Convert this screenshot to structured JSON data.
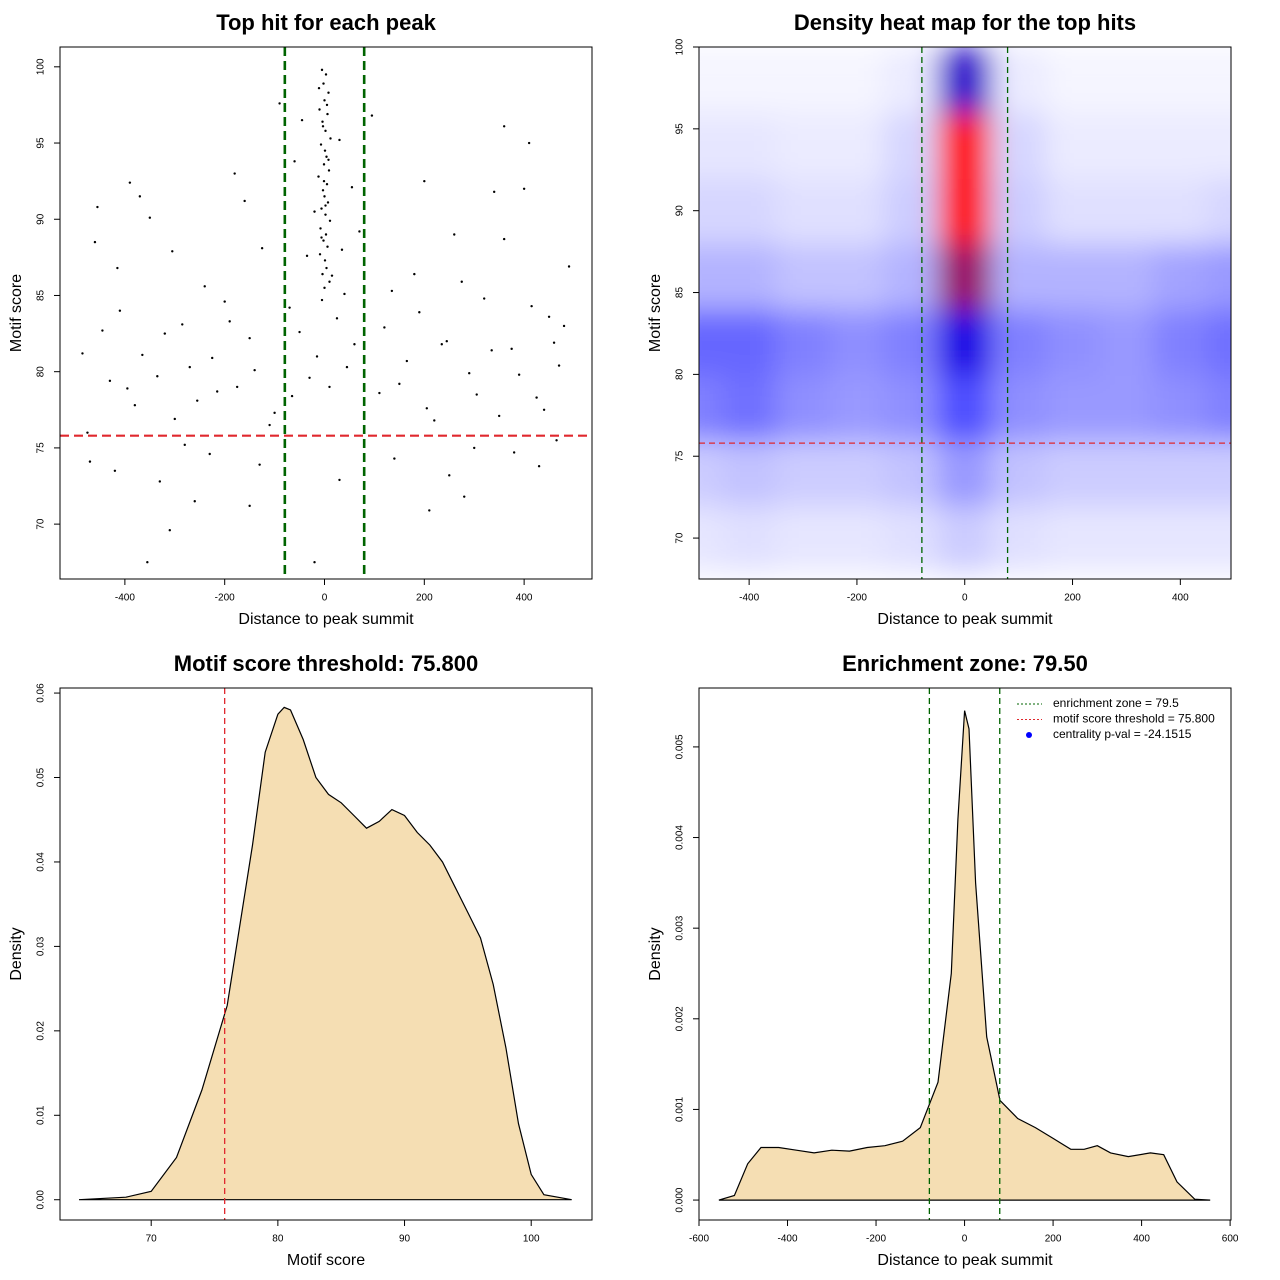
{
  "chart_data": [
    {
      "type": "scatter",
      "title": "Top hit for each peak",
      "x_label": "Distance to peak summit",
      "y_label": "Motif score",
      "xlim": [
        -530,
        536
      ],
      "ylim": [
        66.4,
        101.3
      ],
      "xticks": [
        -400,
        -200,
        0,
        200,
        400
      ],
      "yticks": [
        70,
        75,
        80,
        85,
        90,
        95,
        100
      ],
      "color": "#000000",
      "x": [
        -5,
        3,
        -2,
        8,
        0,
        -10,
        6,
        -4,
        2,
        12,
        -7,
        1,
        4,
        -1,
        9,
        -12,
        5,
        -3,
        0,
        7,
        -6,
        2,
        11,
        -8,
        3,
        -2,
        6,
        -9,
        1,
        4,
        -4,
        10,
        0,
        -11,
        5,
        -3,
        8,
        -1,
        2,
        -6,
        -45,
        30,
        -60,
        55,
        -20,
        70,
        -35,
        15,
        40,
        -70,
        25,
        -50,
        60,
        -15,
        45,
        -30,
        10,
        -65,
        35,
        -5,
        -485,
        -460,
        -430,
        -410,
        -380,
        -350,
        -320,
        -300,
        -270,
        -240,
        -215,
        -190,
        -160,
        -140,
        -110,
        120,
        150,
        180,
        205,
        235,
        260,
        290,
        320,
        350,
        375,
        400,
        425,
        450,
        470,
        490,
        -475,
        -445,
        -415,
        -395,
        -365,
        -335,
        -305,
        -285,
        -255,
        -225,
        -200,
        -175,
        -150,
        -125,
        -100,
        110,
        135,
        165,
        190,
        220,
        245,
        275,
        305,
        335,
        360,
        390,
        415,
        440,
        460,
        480,
        -470,
        -420,
        -370,
        -330,
        -280,
        -230,
        -180,
        -130,
        140,
        200,
        250,
        300,
        340,
        380,
        430,
        465,
        -455,
        -390,
        -260,
        -150,
        280,
        410,
        -355,
        -20,
        30,
        210,
        -90,
        95,
        -310,
        360
      ],
      "y": [
        99.8,
        99.5,
        98.9,
        98.3,
        97.8,
        97.2,
        96.9,
        96.4,
        95.8,
        95.3,
        94.9,
        94.5,
        94.1,
        93.6,
        93.2,
        92.8,
        92.3,
        91.9,
        91.5,
        91.1,
        90.7,
        90.3,
        89.9,
        89.4,
        89.0,
        88.6,
        88.2,
        87.7,
        87.3,
        86.8,
        86.4,
        85.9,
        85.5,
        98.6,
        97.5,
        96.1,
        93.9,
        92.5,
        90.9,
        88.8,
        96.5,
        95.2,
        93.8,
        92.1,
        90.5,
        89.2,
        87.6,
        86.3,
        85.1,
        84.2,
        83.5,
        82.6,
        81.8,
        81.0,
        80.3,
        79.6,
        79.0,
        78.4,
        88.0,
        84.7,
        81.2,
        88.5,
        79.4,
        84.0,
        77.8,
        90.1,
        82.5,
        76.9,
        80.3,
        85.6,
        78.7,
        83.3,
        91.2,
        80.1,
        76.5,
        82.9,
        79.2,
        86.4,
        77.6,
        81.8,
        89.0,
        79.9,
        84.8,
        77.1,
        81.5,
        92.0,
        78.3,
        83.6,
        80.4,
        86.9,
        76.0,
        82.7,
        86.8,
        78.9,
        81.1,
        79.7,
        87.9,
        83.1,
        78.1,
        80.9,
        84.6,
        79.0,
        82.2,
        88.1,
        77.3,
        78.6,
        85.3,
        80.7,
        83.9,
        76.8,
        82.0,
        85.9,
        78.5,
        81.4,
        88.7,
        79.8,
        84.3,
        77.5,
        81.9,
        83.0,
        74.1,
        73.5,
        91.5,
        72.8,
        75.2,
        74.6,
        93.0,
        73.9,
        74.3,
        92.5,
        73.2,
        75.0,
        91.8,
        74.7,
        73.8,
        75.5,
        90.8,
        92.4,
        71.5,
        71.2,
        71.8,
        95.0,
        67.5,
        67.5,
        72.9,
        70.9,
        97.6,
        96.8,
        69.6,
        96.1
      ],
      "vlines": [
        {
          "value": -79.5,
          "color": "#006400"
        },
        {
          "value": 79.5,
          "color": "#006400"
        }
      ],
      "hlines": [
        {
          "value": 75.8,
          "color": "#e0282e"
        }
      ]
    },
    {
      "type": "heatmap",
      "title": "Density heat map for the top hits",
      "x_label": "Distance to peak summit",
      "y_label": "Motif score",
      "xlim": [
        -493,
        494
      ],
      "ylim": [
        67.5,
        100
      ],
      "xticks": [
        -400,
        -200,
        0,
        200,
        400
      ],
      "yticks": [
        70,
        75,
        80,
        85,
        90,
        95,
        100
      ],
      "colors": [
        "#ffffff",
        "#0000ff",
        "#ff0000"
      ],
      "x": [
        -500,
        -400,
        -300,
        -200,
        -100,
        0,
        100,
        200,
        300,
        400,
        500
      ],
      "y": [
        70,
        74,
        78,
        82,
        86,
        90,
        94,
        98
      ],
      "z": [
        [
          0.05,
          0.06,
          0.05,
          0.05,
          0.06,
          0.1,
          0.06,
          0.05,
          0.05,
          0.05,
          0.05
        ],
        [
          0.1,
          0.12,
          0.1,
          0.1,
          0.12,
          0.2,
          0.12,
          0.1,
          0.1,
          0.1,
          0.1
        ],
        [
          0.25,
          0.28,
          0.22,
          0.2,
          0.22,
          0.35,
          0.22,
          0.2,
          0.2,
          0.22,
          0.25
        ],
        [
          0.3,
          0.3,
          0.25,
          0.22,
          0.25,
          0.55,
          0.25,
          0.22,
          0.2,
          0.25,
          0.28
        ],
        [
          0.15,
          0.15,
          0.12,
          0.12,
          0.15,
          0.8,
          0.15,
          0.15,
          0.15,
          0.18,
          0.2
        ],
        [
          0.08,
          0.08,
          0.06,
          0.06,
          0.1,
          1.0,
          0.1,
          0.06,
          0.06,
          0.06,
          0.08
        ],
        [
          0.05,
          0.05,
          0.04,
          0.04,
          0.08,
          1.0,
          0.08,
          0.04,
          0.04,
          0.04,
          0.04
        ],
        [
          0.02,
          0.02,
          0.02,
          0.02,
          0.04,
          0.6,
          0.04,
          0.02,
          0.02,
          0.02,
          0.02
        ]
      ],
      "vlines": [
        {
          "value": -79.5,
          "color": "#006400"
        },
        {
          "value": 79.5,
          "color": "#006400"
        }
      ],
      "hlines": [
        {
          "value": 75.8,
          "color": "#e0282e"
        }
      ]
    },
    {
      "type": "area",
      "title": "Motif score threshold: 75.800",
      "x_label": "Motif score",
      "y_label": "Density",
      "xlim": [
        62.8,
        104.8
      ],
      "ylim": [
        -0.0024,
        0.0606
      ],
      "xticks": [
        70,
        80,
        90,
        100
      ],
      "yticks": [
        {
          "value": 0,
          "label": "0.00"
        },
        0.01,
        0.02,
        0.03,
        0.04,
        0.05,
        0.06
      ],
      "color": "#f5deb3",
      "x": [
        64.3,
        68,
        70,
        72,
        74,
        76,
        78,
        79,
        80,
        80.5,
        81,
        82,
        83,
        84,
        85,
        86,
        87,
        88,
        89,
        90,
        91,
        92,
        93,
        94,
        95,
        96,
        97,
        98,
        99,
        100,
        101,
        103.2
      ],
      "values": [
        0,
        0.0003,
        0.001,
        0.005,
        0.013,
        0.023,
        0.042,
        0.053,
        0.0575,
        0.0583,
        0.058,
        0.0545,
        0.05,
        0.048,
        0.047,
        0.0455,
        0.044,
        0.0448,
        0.0462,
        0.0455,
        0.0435,
        0.042,
        0.04,
        0.037,
        0.034,
        0.031,
        0.0255,
        0.018,
        0.009,
        0.003,
        0.0006,
        0
      ],
      "vlines": [
        {
          "value": 75.8,
          "color": "#e0282e"
        }
      ]
    },
    {
      "type": "area",
      "title": "Enrichment zone: 79.50",
      "x_label": "Distance to peak summit",
      "y_label": "Density",
      "xlim": [
        -600,
        602
      ],
      "ylim": [
        -0.00022,
        0.00565
      ],
      "xticks": [
        -600,
        -400,
        -200,
        0,
        200,
        400,
        600
      ],
      "yticks": [
        {
          "value": 0,
          "label": "0.000"
        },
        0.001,
        0.002,
        0.003,
        0.004,
        0.005
      ],
      "color": "#f5deb3",
      "x": [
        -555,
        -520,
        -490,
        -460,
        -420,
        -380,
        -340,
        -300,
        -260,
        -220,
        -180,
        -140,
        -100,
        -60,
        -30,
        -15,
        0,
        10,
        25,
        50,
        80,
        120,
        160,
        200,
        240,
        270,
        300,
        330,
        370,
        420,
        450,
        480,
        520,
        555
      ],
      "values": [
        0,
        5e-05,
        0.0004,
        0.00058,
        0.00058,
        0.00055,
        0.00052,
        0.00055,
        0.00054,
        0.00058,
        0.0006,
        0.00065,
        0.0008,
        0.0013,
        0.0025,
        0.0042,
        0.0054,
        0.0052,
        0.0035,
        0.0018,
        0.0011,
        0.0009,
        0.0008,
        0.00068,
        0.00056,
        0.00056,
        0.0006,
        0.00052,
        0.00048,
        0.00052,
        0.0005,
        0.0002,
        1e-05,
        0
      ],
      "vlines": [
        {
          "value": -79.5,
          "color": "#006400"
        },
        {
          "value": 79.5,
          "color": "#006400"
        }
      ],
      "legend": [
        {
          "label": "enrichment zone = 79.5",
          "color": "#006400",
          "marker": "line"
        },
        {
          "label": "motif score threshold = 75.800",
          "color": "#e0282e",
          "marker": "line"
        },
        {
          "label": "centrality p-val = -24.1515",
          "color": "#0000ff",
          "marker": "point"
        }
      ]
    }
  ]
}
